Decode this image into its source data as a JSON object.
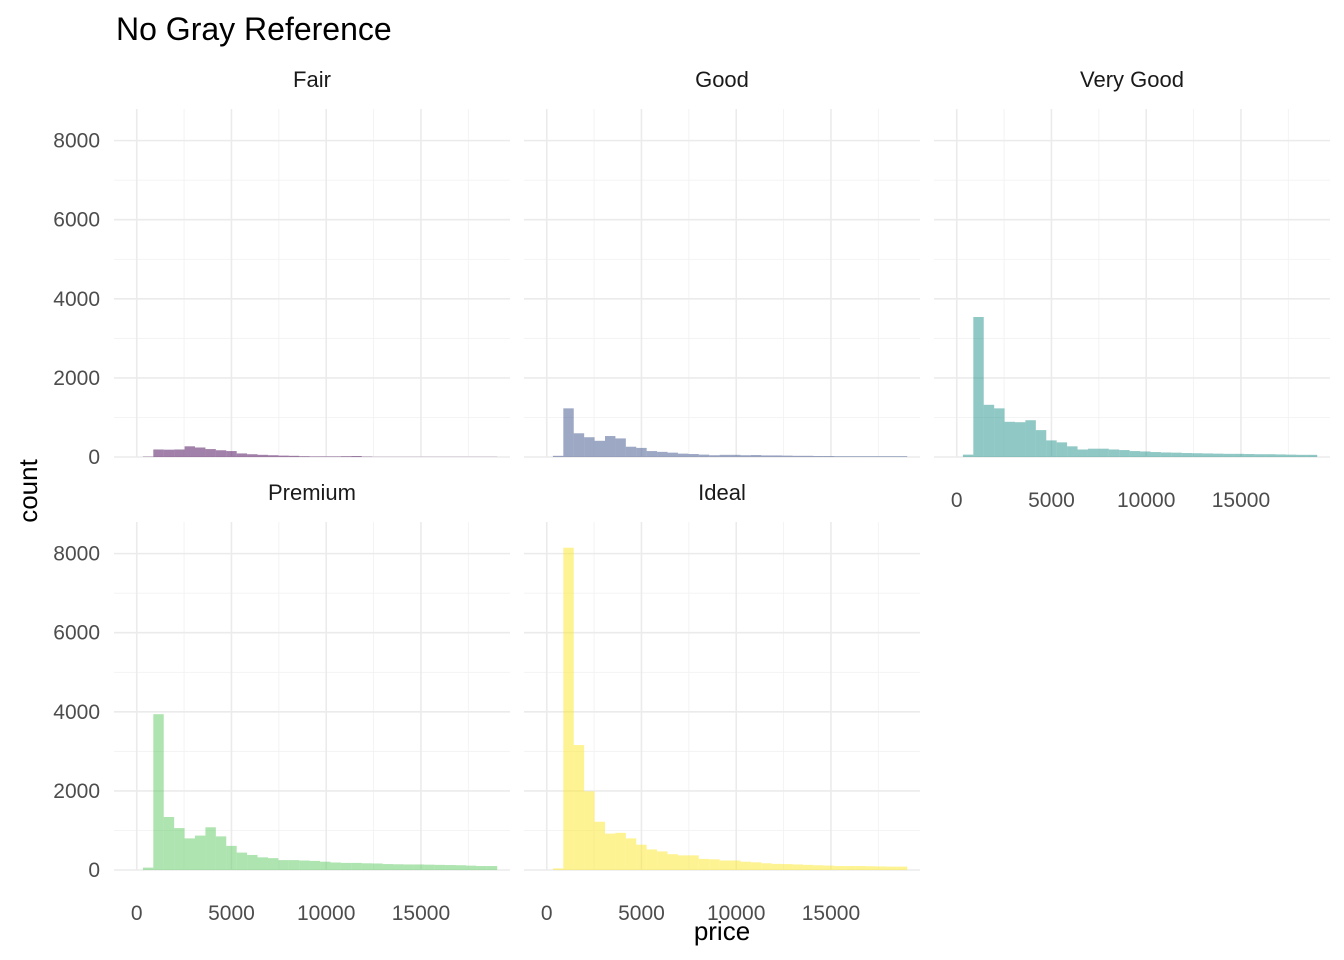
{
  "chart_data": {
    "type": "bar",
    "subtype": "faceted-histogram",
    "title": "No Gray Reference",
    "xlabel": "price",
    "ylabel": "count",
    "xlim": [
      -1200,
      19700
    ],
    "ylim": [
      0,
      8800
    ],
    "x_ticks": [
      0,
      5000,
      10000,
      15000
    ],
    "y_ticks": [
      0,
      2000,
      4000,
      6000,
      8000
    ],
    "grid": true,
    "legend": "none",
    "bin_width": 550,
    "bin_start": 325,
    "panels": [
      {
        "name": "Fair",
        "color": "#440154",
        "values": [
          10,
          190,
          185,
          190,
          270,
          240,
          200,
          170,
          150,
          90,
          70,
          55,
          45,
          35,
          30,
          20,
          15,
          15,
          15,
          20,
          25,
          10,
          5,
          5,
          5,
          5,
          5,
          5,
          5,
          5,
          5,
          5,
          5,
          5
        ]
      },
      {
        "name": "Good",
        "color": "#3b528b",
        "values": [
          30,
          1230,
          600,
          500,
          410,
          530,
          470,
          260,
          230,
          150,
          130,
          110,
          85,
          75,
          60,
          45,
          55,
          55,
          45,
          50,
          40,
          40,
          35,
          30,
          30,
          25,
          25,
          20,
          20,
          20,
          20,
          20,
          20,
          20
        ]
      },
      {
        "name": "Very Good",
        "color": "#21918c",
        "values": [
          60,
          3540,
          1320,
          1230,
          890,
          880,
          930,
          680,
          420,
          370,
          270,
          190,
          210,
          210,
          190,
          175,
          150,
          140,
          125,
          115,
          110,
          100,
          95,
          90,
          85,
          80,
          80,
          75,
          70,
          70,
          65,
          60,
          55,
          55
        ]
      },
      {
        "name": "Premium",
        "color": "#5ec962",
        "values": [
          60,
          3940,
          1340,
          1060,
          800,
          870,
          1080,
          850,
          610,
          440,
          380,
          320,
          300,
          250,
          250,
          240,
          230,
          210,
          190,
          180,
          180,
          170,
          165,
          150,
          145,
          140,
          140,
          135,
          130,
          125,
          120,
          110,
          100,
          100
        ]
      },
      {
        "name": "Ideal",
        "color": "#fde725",
        "values": [
          40,
          8150,
          3160,
          1990,
          1220,
          920,
          940,
          800,
          640,
          520,
          470,
          400,
          370,
          370,
          280,
          270,
          240,
          240,
          210,
          195,
          170,
          155,
          150,
          140,
          130,
          120,
          110,
          100,
          100,
          100,
          95,
          90,
          85,
          85
        ]
      }
    ]
  }
}
